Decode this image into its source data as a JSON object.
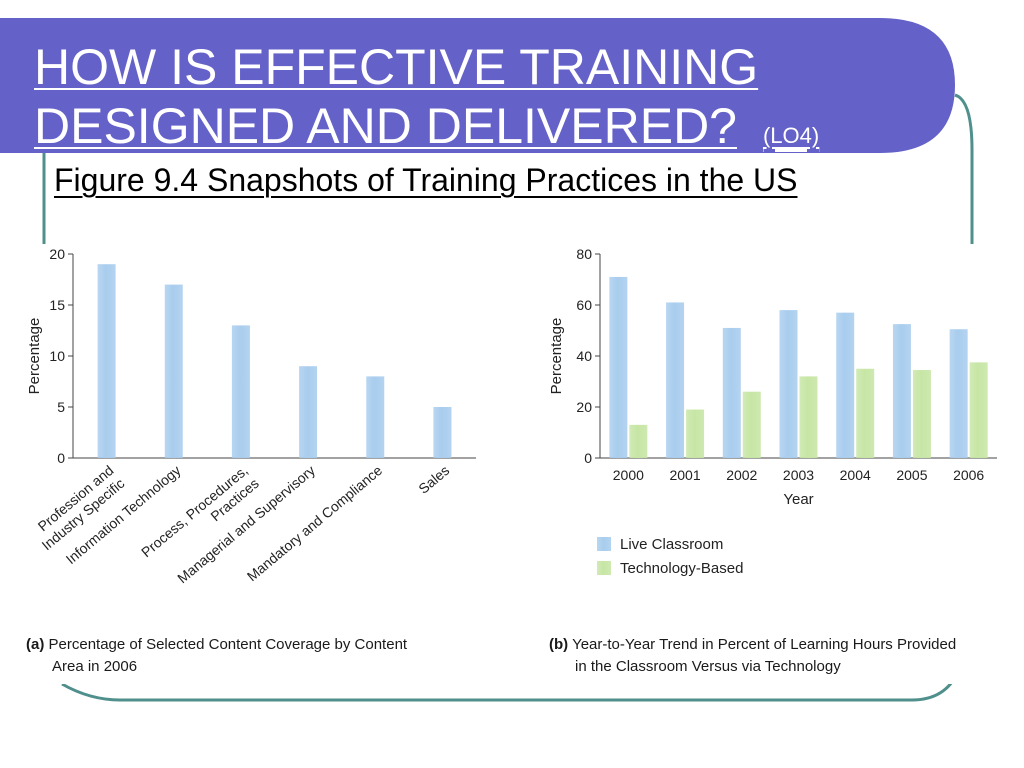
{
  "slide": {
    "title_line_1": "HOW IS EFFECTIVE TRAINING",
    "title_line_2": "DESIGNED AND DELIVERED?",
    "title_tag": "(LO4)",
    "figure_title": "Figure 9.4  Snapshots of Training Practices in the US",
    "colors": {
      "title_bar": "#6462c8",
      "frame": "#4f8f8c",
      "bar_blue": "#a9cdee",
      "bar_green": "#c7e6a5",
      "axis": "#444444"
    }
  },
  "captions": {
    "a_label": "(a)",
    "a_line1": "Percentage of Selected Content Coverage by Content",
    "a_line2": "Area in 2006",
    "b_label": "(b)",
    "b_line1": "Year-to-Year Trend in Percent of Learning Hours Provided",
    "b_line2": "in the Classroom Versus via Technology"
  },
  "chart_data": [
    {
      "type": "bar",
      "ylabel": "Percentage",
      "ylim": [
        0,
        20
      ],
      "yticks": [
        0,
        5,
        10,
        15,
        20
      ],
      "categories": [
        "Profession and\nIndustry Specific",
        "Information Technology",
        "Process, Procedures,\nPractices",
        "Managerial and Supervisory",
        "Mandatory and Compliance",
        "Sales"
      ],
      "values": [
        19,
        17,
        13,
        9,
        8,
        5
      ]
    },
    {
      "type": "bar",
      "ylabel": "Percentage",
      "xlabel": "Year",
      "ylim": [
        0,
        80
      ],
      "yticks": [
        0,
        20,
        40,
        60,
        80
      ],
      "categories": [
        "2000",
        "2001",
        "2002",
        "2003",
        "2004",
        "2005",
        "2006"
      ],
      "series": [
        {
          "name": "Live Classroom",
          "values": [
            71,
            61,
            51,
            58,
            57,
            52.5,
            50.5
          ]
        },
        {
          "name": "Technology-Based",
          "values": [
            13,
            19,
            26,
            32,
            35,
            34.5,
            37.5
          ]
        }
      ],
      "legend": "bottom"
    }
  ]
}
